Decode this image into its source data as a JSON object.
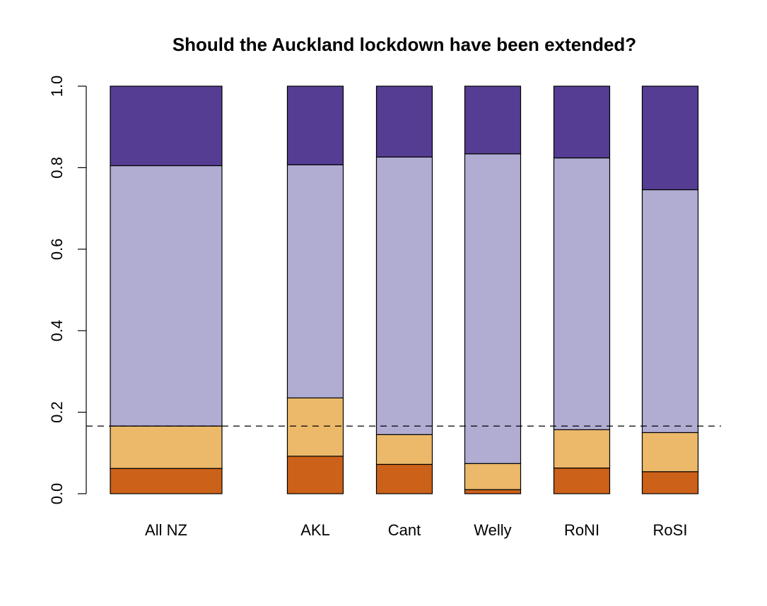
{
  "chart_data": {
    "type": "bar",
    "stacked": true,
    "title": "Should the Auckland lockdown have been extended?",
    "xlabel": "",
    "ylabel": "",
    "ylim": [
      0,
      1
    ],
    "yticks": [
      "0.0",
      "0.2",
      "0.4",
      "0.6",
      "0.8",
      "1.0"
    ],
    "categories": [
      "All NZ",
      "AKL",
      "Cant",
      "Welly",
      "RoNI",
      "RoSI"
    ],
    "series": [
      {
        "color": "#cc6119",
        "values": [
          0.062,
          0.092,
          0.072,
          0.01,
          0.063,
          0.054
        ]
      },
      {
        "color": "#ecb96a",
        "values": [
          0.104,
          0.143,
          0.073,
          0.064,
          0.094,
          0.096
        ]
      },
      {
        "color": "#b0acd2",
        "values": [
          0.639,
          0.572,
          0.681,
          0.76,
          0.667,
          0.596
        ]
      },
      {
        "color": "#553d93",
        "values": [
          0.195,
          0.193,
          0.174,
          0.166,
          0.176,
          0.254
        ]
      }
    ],
    "reference_line": {
      "value": 0.166,
      "style": "dashed"
    },
    "grid": false,
    "legend": "none"
  }
}
